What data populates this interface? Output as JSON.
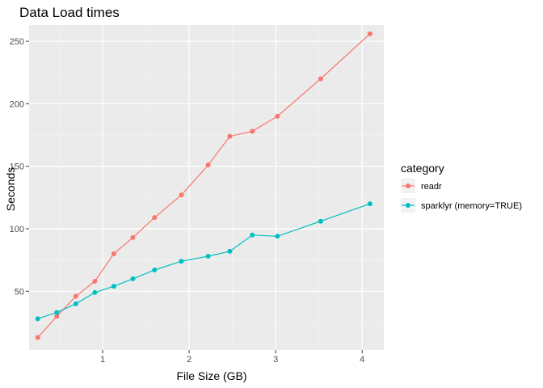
{
  "chart_data": {
    "type": "line",
    "title": "Data Load times",
    "xlabel": "File Size (GB)",
    "ylabel": "Seconds",
    "xlim": [
      0.15,
      4.25
    ],
    "ylim": [
      3,
      263
    ],
    "x_ticks": [
      1,
      2,
      3,
      4
    ],
    "x_minor_ticks": [
      0.5,
      1.5,
      2.5,
      3.5
    ],
    "y_ticks": [
      50,
      100,
      150,
      200,
      250
    ],
    "y_minor_ticks": [
      25,
      75,
      125,
      175,
      225
    ],
    "grid": true,
    "legend": {
      "title": "category",
      "position": "right"
    },
    "series": [
      {
        "name": "readr",
        "color": "#F8766D",
        "x": [
          0.25,
          0.47,
          0.69,
          0.91,
          1.13,
          1.35,
          1.6,
          1.91,
          2.22,
          2.47,
          2.73,
          3.02,
          3.52,
          4.09
        ],
        "y": [
          13,
          30,
          46,
          58,
          80,
          93,
          109,
          127,
          151,
          174,
          178,
          190,
          220,
          256
        ]
      },
      {
        "name": "sparklyr (memory=TRUE)",
        "color": "#00BFC4",
        "x": [
          0.25,
          0.47,
          0.69,
          0.91,
          1.13,
          1.35,
          1.6,
          1.91,
          2.22,
          2.47,
          2.73,
          3.02,
          3.52,
          4.09
        ],
        "y": [
          28,
          33,
          40,
          49,
          54,
          60,
          67,
          74,
          78,
          82,
          95,
          94,
          106,
          120
        ]
      }
    ]
  }
}
